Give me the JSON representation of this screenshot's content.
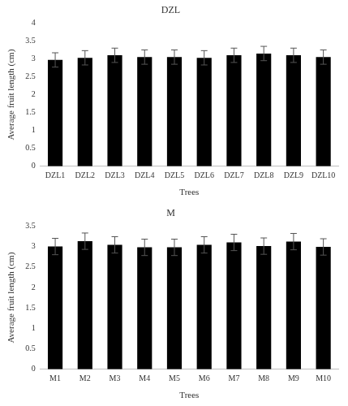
{
  "chart_data": [
    {
      "type": "bar",
      "title": "DZL",
      "x_label": "Trees",
      "y_label": "Average fruit length (cm)",
      "categories": [
        "DZL1",
        "DZL2",
        "DZL3",
        "DZL4",
        "DZL5",
        "DZL6",
        "DZL7",
        "DZL8",
        "DZL9",
        "DZL10"
      ],
      "values": [
        2.97,
        3.03,
        3.1,
        3.05,
        3.05,
        3.03,
        3.1,
        3.15,
        3.1,
        3.05
      ],
      "errors": [
        0.2,
        0.2,
        0.2,
        0.2,
        0.2,
        0.2,
        0.2,
        0.2,
        0.2,
        0.2
      ],
      "color": "#000000",
      "ylim": [
        0,
        4
      ],
      "yticks": [
        0,
        0.5,
        1,
        1.5,
        2,
        2.5,
        3,
        3.5,
        4
      ],
      "grid": false
    },
    {
      "type": "bar",
      "title": "M",
      "x_label": "Trees",
      "y_label": "Average fruit length (cm)",
      "categories": [
        "M1",
        "M2",
        "M3",
        "M4",
        "M5",
        "M6",
        "M7",
        "M8",
        "M9",
        "M10"
      ],
      "values": [
        3.0,
        3.13,
        3.04,
        2.98,
        2.98,
        3.04,
        3.1,
        3.01,
        3.12,
        2.99
      ],
      "errors": [
        0.2,
        0.2,
        0.2,
        0.2,
        0.2,
        0.2,
        0.2,
        0.2,
        0.2,
        0.2
      ],
      "color": "#000000",
      "ylim": [
        0,
        3.5
      ],
      "yticks": [
        0,
        0.5,
        1,
        1.5,
        2,
        2.5,
        3,
        3.5
      ],
      "grid": false
    }
  ]
}
